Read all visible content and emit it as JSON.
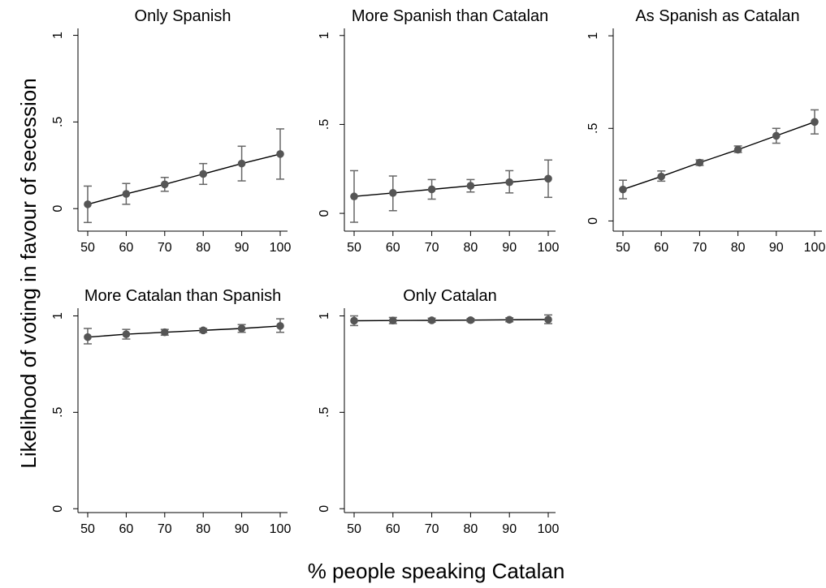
{
  "chart_data": {
    "type": "line",
    "ylabel": "Likelihood of voting in favour of secession",
    "xlabel": "% people speaking Catalan",
    "x": [
      50,
      60,
      70,
      80,
      90,
      100
    ],
    "xticks": [
      "50",
      "60",
      "70",
      "80",
      "90",
      "100"
    ],
    "yticks": [
      {
        "value": 0,
        "label": "0"
      },
      {
        "value": 0.5,
        "label": ".5"
      },
      {
        "value": 1,
        "label": "1"
      }
    ],
    "colors": {
      "point": "#555555",
      "error_bar": "#666666",
      "line": "#000000"
    },
    "panels": [
      {
        "title": "Only Spanish",
        "ylim": [
          -0.13,
          1.04
        ],
        "y": [
          0.025,
          0.085,
          0.14,
          0.2,
          0.26,
          0.315
        ],
        "ci_low": [
          -0.08,
          0.025,
          0.1,
          0.14,
          0.16,
          0.17
        ],
        "ci_high": [
          0.13,
          0.145,
          0.18,
          0.26,
          0.36,
          0.46
        ]
      },
      {
        "title": "More Spanish than Catalan",
        "ylim": [
          -0.1,
          1.04
        ],
        "y": [
          0.095,
          0.115,
          0.135,
          0.155,
          0.175,
          0.195
        ],
        "ci_low": [
          -0.05,
          0.015,
          0.08,
          0.12,
          0.115,
          0.09
        ],
        "ci_high": [
          0.24,
          0.21,
          0.19,
          0.19,
          0.24,
          0.3
        ]
      },
      {
        "title": "As Spanish as Catalan",
        "ylim": [
          -0.055,
          1.04
        ],
        "y": [
          0.17,
          0.24,
          0.315,
          0.385,
          0.46,
          0.535
        ],
        "ci_low": [
          0.12,
          0.215,
          0.3,
          0.37,
          0.42,
          0.47
        ],
        "ci_high": [
          0.22,
          0.27,
          0.33,
          0.405,
          0.5,
          0.6
        ]
      },
      {
        "title": "More Catalan than Spanish",
        "ylim": [
          -0.02,
          1.04
        ],
        "y": [
          0.89,
          0.905,
          0.915,
          0.925,
          0.935,
          0.948
        ],
        "ci_low": [
          0.855,
          0.88,
          0.9,
          0.915,
          0.915,
          0.915
        ],
        "ci_high": [
          0.935,
          0.93,
          0.93,
          0.935,
          0.955,
          0.985
        ]
      },
      {
        "title": "Only Catalan",
        "ylim": [
          -0.02,
          1.04
        ],
        "y": [
          0.975,
          0.976,
          0.977,
          0.978,
          0.98,
          0.981
        ],
        "ci_low": [
          0.95,
          0.96,
          0.968,
          0.97,
          0.97,
          0.96
        ],
        "ci_high": [
          1.0,
          0.992,
          0.988,
          0.986,
          0.99,
          1.005
        ]
      }
    ]
  }
}
